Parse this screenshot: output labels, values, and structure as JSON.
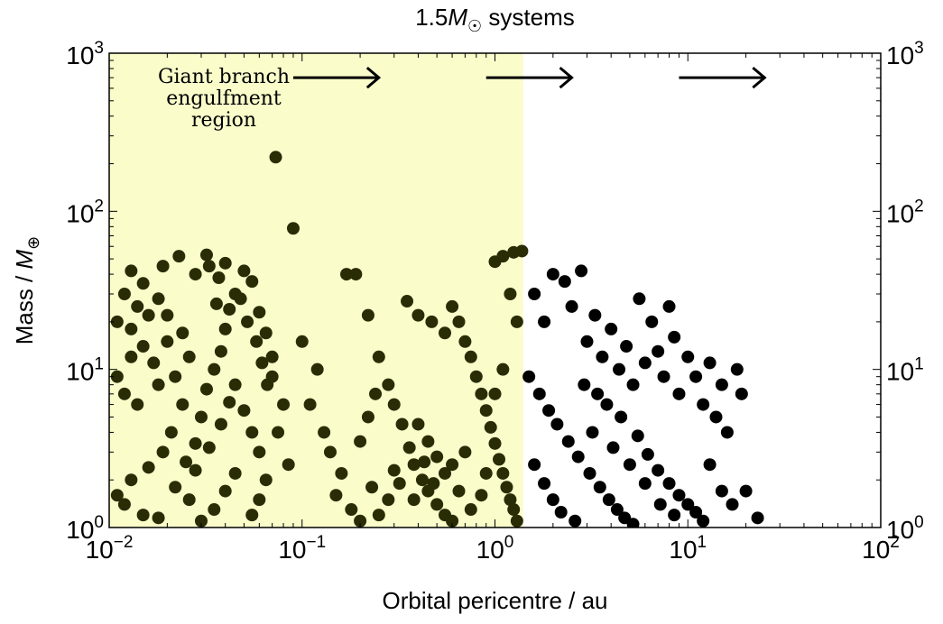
{
  "chart_data": {
    "type": "scatter",
    "title_prefix": "1.5",
    "title_symbol": "M",
    "title_sub": "☉",
    "title_suffix": " systems",
    "xlabel": "Orbital pericentre / au",
    "ylabel_prefix": "Mass / ",
    "ylabel_symbol": "M",
    "ylabel_sub": "⊕",
    "xscale": "log",
    "yscale": "log",
    "xlim": [
      0.01,
      100
    ],
    "ylim": [
      1,
      1000
    ],
    "xtick_base": "10",
    "xtick_exponents": [
      "−2",
      "−1",
      "0",
      "1",
      "2"
    ],
    "xtick_values": [
      0.01,
      0.1,
      1,
      10,
      100
    ],
    "ytick_base": "10",
    "ytick_exponents": [
      "0",
      "1",
      "2",
      "3"
    ],
    "ytick_values": [
      1,
      10,
      100,
      1000
    ],
    "region": {
      "label_lines": [
        "Giant branch",
        "engulfment",
        "region"
      ],
      "x_range": [
        0.01,
        1.4
      ],
      "color": "#fafdca"
    },
    "arrows": [
      {
        "x_from": 0.09,
        "x_to": 0.25,
        "y": 700
      },
      {
        "x_from": 0.9,
        "x_to": 2.5,
        "y": 700
      },
      {
        "x_from": 9,
        "x_to": 25,
        "y": 700
      }
    ],
    "colors": {
      "engulfed_point": "#2a2c06",
      "surviving_point": "#000000",
      "frame": "#000000"
    },
    "grid": false,
    "series": [
      {
        "role": "engulfed",
        "points": [
          [
            0.011,
            20
          ],
          [
            0.012,
            30
          ],
          [
            0.013,
            18
          ],
          [
            0.014,
            25
          ],
          [
            0.013,
            12
          ],
          [
            0.011,
            9
          ],
          [
            0.015,
            14
          ],
          [
            0.016,
            22
          ],
          [
            0.012,
            7
          ],
          [
            0.014,
            6
          ],
          [
            0.018,
            8
          ],
          [
            0.017,
            11
          ],
          [
            0.02,
            15
          ],
          [
            0.022,
            9
          ],
          [
            0.024,
            6
          ],
          [
            0.021,
            4
          ],
          [
            0.019,
            3
          ],
          [
            0.016,
            2.4
          ],
          [
            0.013,
            2.0
          ],
          [
            0.012,
            1.4
          ],
          [
            0.011,
            1.6
          ],
          [
            0.015,
            1.2
          ],
          [
            0.018,
            1.15
          ],
          [
            0.022,
            1.8
          ],
          [
            0.025,
            2.6
          ],
          [
            0.028,
            3.4
          ],
          [
            0.03,
            5
          ],
          [
            0.032,
            7.5
          ],
          [
            0.035,
            10
          ],
          [
            0.038,
            13
          ],
          [
            0.04,
            18
          ],
          [
            0.042,
            24
          ],
          [
            0.045,
            30
          ],
          [
            0.037,
            38
          ],
          [
            0.033,
            45
          ],
          [
            0.028,
            40
          ],
          [
            0.023,
            52
          ],
          [
            0.032,
            53
          ],
          [
            0.04,
            47
          ],
          [
            0.05,
            42
          ],
          [
            0.055,
            36
          ],
          [
            0.048,
            28
          ],
          [
            0.052,
            20
          ],
          [
            0.058,
            15
          ],
          [
            0.062,
            11
          ],
          [
            0.066,
            8
          ],
          [
            0.07,
            12
          ],
          [
            0.065,
            17
          ],
          [
            0.06,
            23
          ],
          [
            0.045,
            8
          ],
          [
            0.05,
            5.5
          ],
          [
            0.055,
            4
          ],
          [
            0.06,
            3
          ],
          [
            0.045,
            2.2
          ],
          [
            0.04,
            1.7
          ],
          [
            0.035,
            1.3
          ],
          [
            0.03,
            1.1
          ],
          [
            0.026,
            1.5
          ],
          [
            0.028,
            2.3
          ],
          [
            0.033,
            3.2
          ],
          [
            0.038,
            4.5
          ],
          [
            0.042,
            6.2
          ],
          [
            0.026,
            12
          ],
          [
            0.024,
            17
          ],
          [
            0.02,
            22
          ],
          [
            0.018,
            28
          ],
          [
            0.015,
            35
          ],
          [
            0.013,
            42
          ],
          [
            0.019,
            45
          ],
          [
            0.036,
            26
          ],
          [
            0.073,
            220
          ],
          [
            0.09,
            78
          ],
          [
            0.1,
            15
          ],
          [
            0.12,
            10
          ],
          [
            0.11,
            6
          ],
          [
            0.13,
            4
          ],
          [
            0.14,
            3
          ],
          [
            0.16,
            2.2
          ],
          [
            0.15,
            1.6
          ],
          [
            0.18,
            1.3
          ],
          [
            0.2,
            1.1
          ],
          [
            0.17,
            40
          ],
          [
            0.19,
            40
          ],
          [
            0.22,
            22
          ],
          [
            0.25,
            12
          ],
          [
            0.28,
            8
          ],
          [
            0.3,
            6
          ],
          [
            0.33,
            4.5
          ],
          [
            0.36,
            3.2
          ],
          [
            0.38,
            2.5
          ],
          [
            0.42,
            2
          ],
          [
            0.45,
            1.7
          ],
          [
            0.5,
            1.4
          ],
          [
            0.55,
            1.2
          ],
          [
            0.6,
            1.1
          ],
          [
            0.35,
            27
          ],
          [
            0.4,
            22
          ],
          [
            0.47,
            20
          ],
          [
            0.55,
            17
          ],
          [
            0.6,
            25
          ],
          [
            0.65,
            20
          ],
          [
            0.7,
            15
          ],
          [
            0.75,
            12
          ],
          [
            0.8,
            9
          ],
          [
            0.85,
            7
          ],
          [
            0.9,
            5.5
          ],
          [
            0.95,
            4.3
          ],
          [
            1.0,
            3.4
          ],
          [
            1.05,
            2.7
          ],
          [
            1.1,
            2.2
          ],
          [
            1.15,
            1.8
          ],
          [
            1.2,
            1.5
          ],
          [
            1.25,
            1.3
          ],
          [
            1.3,
            1.1
          ],
          [
            0.7,
            3
          ],
          [
            0.6,
            2.5
          ],
          [
            0.5,
            2.8
          ],
          [
            0.45,
            3.5
          ],
          [
            0.4,
            4.5
          ],
          [
            0.3,
            2.3
          ],
          [
            0.28,
            1.5
          ],
          [
            0.25,
            1.2
          ],
          [
            0.23,
            1.8
          ],
          [
            0.32,
            1.9
          ],
          [
            1.0,
            48
          ],
          [
            1.1,
            52
          ],
          [
            1.25,
            55
          ],
          [
            1.38,
            56
          ],
          [
            1.2,
            30
          ],
          [
            1.3,
            20
          ],
          [
            1.1,
            10
          ],
          [
            1.0,
            7
          ],
          [
            0.9,
            2.2
          ],
          [
            0.85,
            1.6
          ],
          [
            0.75,
            1.3
          ],
          [
            0.65,
            1.7
          ],
          [
            0.55,
            2.2
          ],
          [
            0.48,
            1.9
          ],
          [
            0.43,
            2.6
          ],
          [
            0.38,
            1.5
          ],
          [
            0.2,
            3.5
          ],
          [
            0.22,
            5
          ],
          [
            0.24,
            7
          ],
          [
            0.08,
            6
          ],
          [
            0.07,
            9
          ],
          [
            0.075,
            4
          ],
          [
            0.085,
            2.5
          ],
          [
            0.065,
            2
          ],
          [
            0.06,
            1.5
          ],
          [
            0.055,
            1.2
          ]
        ]
      },
      {
        "role": "surviving",
        "points": [
          [
            1.6,
            30
          ],
          [
            1.8,
            20
          ],
          [
            2.0,
            40
          ],
          [
            2.3,
            36
          ],
          [
            2.5,
            25
          ],
          [
            2.8,
            42
          ],
          [
            3.0,
            15
          ],
          [
            3.3,
            22
          ],
          [
            3.6,
            12
          ],
          [
            4.0,
            18
          ],
          [
            4.4,
            10
          ],
          [
            4.8,
            14
          ],
          [
            5.2,
            8
          ],
          [
            5.6,
            28
          ],
          [
            6.0,
            11
          ],
          [
            6.5,
            20
          ],
          [
            7.0,
            13
          ],
          [
            7.5,
            9
          ],
          [
            8.0,
            25
          ],
          [
            8.5,
            16
          ],
          [
            9.0,
            7
          ],
          [
            10,
            12
          ],
          [
            11,
            9
          ],
          [
            12,
            6
          ],
          [
            13,
            11
          ],
          [
            14,
            5
          ],
          [
            15,
            8
          ],
          [
            16,
            4
          ],
          [
            18,
            10
          ],
          [
            19,
            7
          ],
          [
            1.5,
            9
          ],
          [
            1.7,
            7
          ],
          [
            1.9,
            5.5
          ],
          [
            2.1,
            4.5
          ],
          [
            2.4,
            3.5
          ],
          [
            2.7,
            2.8
          ],
          [
            3.1,
            2.2
          ],
          [
            3.5,
            1.8
          ],
          [
            3.9,
            1.5
          ],
          [
            4.3,
            1.3
          ],
          [
            4.7,
            1.15
          ],
          [
            5.2,
            1.05
          ],
          [
            1.6,
            2.5
          ],
          [
            1.8,
            1.9
          ],
          [
            2.0,
            1.5
          ],
          [
            2.2,
            1.25
          ],
          [
            2.6,
            1.1
          ],
          [
            3.2,
            4
          ],
          [
            3.8,
            6
          ],
          [
            4.5,
            5
          ],
          [
            5.5,
            3.8
          ],
          [
            6.2,
            2.9
          ],
          [
            7.0,
            2.3
          ],
          [
            8.0,
            1.9
          ],
          [
            9.0,
            1.6
          ],
          [
            10,
            1.4
          ],
          [
            11,
            1.25
          ],
          [
            12,
            1.1
          ],
          [
            13,
            2.5
          ],
          [
            15,
            1.7
          ],
          [
            17,
            1.4
          ],
          [
            20,
            1.7
          ],
          [
            23,
            1.15
          ],
          [
            2.9,
            8
          ],
          [
            3.4,
            7
          ],
          [
            4.1,
            3.2
          ],
          [
            5.0,
            2.5
          ],
          [
            6.0,
            1.9
          ],
          [
            7.2,
            1.4
          ],
          [
            8.5,
            1.2
          ]
        ]
      }
    ]
  }
}
